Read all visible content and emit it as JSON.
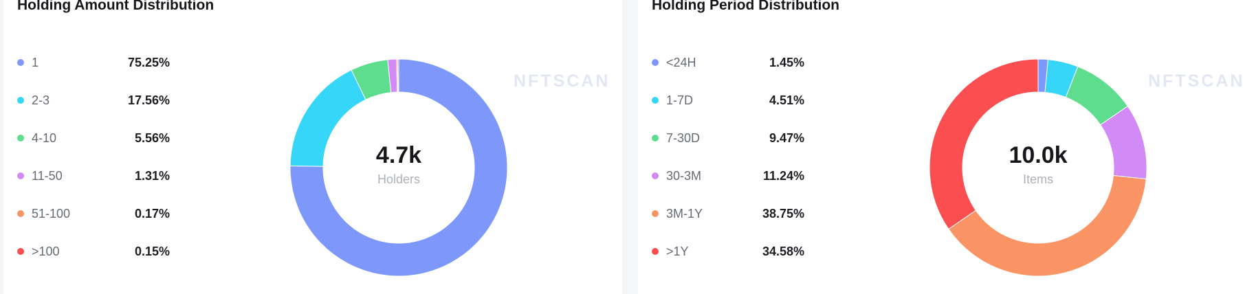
{
  "watermark": "NFTSCAN",
  "panels": [
    {
      "title": "Holding Amount Distribution",
      "center_value": "4.7k",
      "center_label": "Holders",
      "legend": [
        {
          "label": "1",
          "value": "75.25%",
          "color": "#7d97fb"
        },
        {
          "label": "2-3",
          "value": "17.56%",
          "color": "#36d6f9"
        },
        {
          "label": "4-10",
          "value": "5.56%",
          "color": "#5edd8f"
        },
        {
          "label": "11-50",
          "value": "1.31%",
          "color": "#d28af7"
        },
        {
          "label": "51-100",
          "value": "0.17%",
          "color": "#fb9464"
        },
        {
          "label": ">100",
          "value": "0.15%",
          "color": "#fb4e50"
        }
      ]
    },
    {
      "title": "Holding Period Distribution",
      "center_value": "10.0k",
      "center_label": "Items",
      "legend": [
        {
          "label": "<24H",
          "value": "1.45%",
          "color": "#7d97fb"
        },
        {
          "label": "1-7D",
          "value": "4.51%",
          "color": "#36d6f9"
        },
        {
          "label": "7-30D",
          "value": "9.47%",
          "color": "#5edd8f"
        },
        {
          "label": "30-3M",
          "value": "11.24%",
          "color": "#d28af7"
        },
        {
          "label": "3M-1Y",
          "value": "38.75%",
          "color": "#fb9464"
        },
        {
          "label": ">1Y",
          "value": "34.58%",
          "color": "#fb4e50"
        }
      ]
    }
  ],
  "chart_data": [
    {
      "type": "pie",
      "title": "Holding Amount Distribution",
      "categories": [
        "1",
        "2-3",
        "4-10",
        "11-50",
        "51-100",
        ">100"
      ],
      "values": [
        75.25,
        17.56,
        5.56,
        1.31,
        0.17,
        0.15
      ],
      "colors": [
        "#7d97fb",
        "#36d6f9",
        "#5edd8f",
        "#d28af7",
        "#fb9464",
        "#fb4e50"
      ],
      "center_value": "4.7k",
      "center_label": "Holders",
      "legend_position": "left"
    },
    {
      "type": "pie",
      "title": "Holding Period Distribution",
      "categories": [
        "<24H",
        "1-7D",
        "7-30D",
        "30-3M",
        "3M-1Y",
        ">1Y"
      ],
      "values": [
        1.45,
        4.51,
        9.47,
        11.24,
        38.75,
        34.58
      ],
      "colors": [
        "#7d97fb",
        "#36d6f9",
        "#5edd8f",
        "#d28af7",
        "#fb9464",
        "#fb4e50"
      ],
      "center_value": "10.0k",
      "center_label": "Items",
      "legend_position": "left"
    }
  ]
}
